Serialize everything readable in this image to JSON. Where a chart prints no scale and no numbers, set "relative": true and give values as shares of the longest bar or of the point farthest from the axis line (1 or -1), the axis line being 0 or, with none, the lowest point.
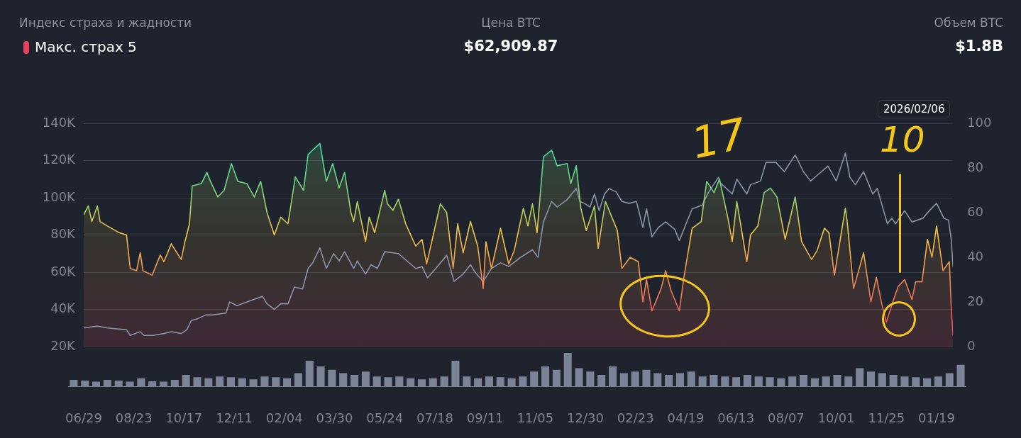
{
  "chart_data": [
    {
      "type": "line",
      "title": "Индекс страха и жадности",
      "subtitle": "Макс. страх 5",
      "annotations": [
        "Цена BTC",
        "$62,909.87",
        "Объем BTC",
        "$1.8B",
        "2026/02/06",
        "17",
        "10"
      ],
      "xlim": [
        "2023-06-29",
        "2026-02-06"
      ],
      "xticks": [
        {
          "value": "2023-06-29",
          "label": "06/29"
        },
        {
          "value": "2023-08-23",
          "label": "08/23"
        },
        {
          "value": "2023-10-17",
          "label": "10/17"
        },
        {
          "value": "2023-12-11",
          "label": "12/11"
        },
        {
          "value": "2024-02-04",
          "label": "02/04"
        },
        {
          "value": "2024-03-30",
          "label": "03/30"
        },
        {
          "value": "2024-05-24",
          "label": "05/24"
        },
        {
          "value": "2024-07-18",
          "label": "07/18"
        },
        {
          "value": "2024-09-11",
          "label": "09/11"
        },
        {
          "value": "2024-11-05",
          "label": "11/05"
        },
        {
          "value": "2024-12-30",
          "label": "12/30"
        },
        {
          "value": "2025-02-23",
          "label": "02/23"
        },
        {
          "value": "2025-04-19",
          "label": "04/19"
        },
        {
          "value": "2025-06-13",
          "label": "06/13"
        },
        {
          "value": "2025-08-07",
          "label": "08/07"
        },
        {
          "value": "2025-10-01",
          "label": "10/01"
        },
        {
          "value": "2025-11-25",
          "label": "11/25"
        },
        {
          "value": "2026-01-19",
          "label": "01/19"
        }
      ],
      "ylim": [
        20,
        140
      ],
      "yticks": [
        {
          "value": 20,
          "label": "20K"
        },
        {
          "value": 40,
          "label": "40K"
        },
        {
          "value": 60,
          "label": "60K"
        },
        {
          "value": 80,
          "label": "80K"
        },
        {
          "value": 100,
          "label": "100K"
        },
        {
          "value": 120,
          "label": "120K"
        },
        {
          "value": 140,
          "label": "140K"
        }
      ],
      "y2lim": [
        0,
        100
      ],
      "y2ticks": [
        0,
        20,
        40,
        60,
        80,
        100
      ],
      "grid": "y",
      "series": [
        {
          "type": "area",
          "axis": "y2",
          "color": "#f5c542",
          "x": [
            "2023-06-29",
            "2023-07-04",
            "2023-07-08",
            "2023-07-14",
            "2023-07-17",
            "2023-07-25",
            "2023-08-07",
            "2023-08-15",
            "2023-08-19",
            "2023-08-26",
            "2023-08-30",
            "2023-09-02",
            "2023-09-12",
            "2023-09-21",
            "2023-09-25",
            "2023-10-03",
            "2023-10-14",
            "2023-10-18",
            "2023-10-23",
            "2023-10-26",
            "2023-11-05",
            "2023-11-11",
            "2023-11-15",
            "2023-11-23",
            "2023-11-30",
            "2023-12-08",
            "2023-12-15",
            "2023-12-25",
            "2024-01-02",
            "2024-01-09",
            "2024-01-16",
            "2024-01-24",
            "2024-01-31",
            "2024-02-08",
            "2024-02-16",
            "2024-02-25",
            "2024-03-01",
            "2024-03-06",
            "2024-03-14",
            "2024-03-21",
            "2024-03-28",
            "2024-04-04",
            "2024-04-10",
            "2024-04-17",
            "2024-04-20",
            "2024-04-24",
            "2024-05-03",
            "2024-05-07",
            "2024-05-13",
            "2024-05-24",
            "2024-05-27",
            "2024-06-02",
            "2024-06-08",
            "2024-06-16",
            "2024-06-27",
            "2024-07-04",
            "2024-07-09",
            "2024-07-19",
            "2024-07-24",
            "2024-07-31",
            "2024-08-07",
            "2024-08-12",
            "2024-08-18",
            "2024-08-26",
            "2024-09-03",
            "2024-09-09",
            "2024-09-12",
            "2024-09-18",
            "2024-09-28",
            "2024-10-07",
            "2024-10-13",
            "2024-10-23",
            "2024-10-28",
            "2024-11-02",
            "2024-11-07",
            "2024-11-14",
            "2024-11-23",
            "2024-11-29",
            "2024-12-10",
            "2024-12-14",
            "2024-12-20",
            "2024-12-25",
            "2024-12-31",
            "2025-01-09",
            "2025-01-13",
            "2025-01-21",
            "2025-01-25",
            "2025-02-03",
            "2025-02-08",
            "2025-02-17",
            "2025-02-26",
            "2025-03-03",
            "2025-03-07",
            "2025-03-13",
            "2025-03-23",
            "2025-03-28",
            "2025-04-03",
            "2025-04-12",
            "2025-04-17",
            "2025-04-26",
            "2025-05-06",
            "2025-05-12",
            "2025-05-20",
            "2025-05-26",
            "2025-06-04",
            "2025-06-09",
            "2025-06-14",
            "2025-06-25",
            "2025-06-29",
            "2025-07-07",
            "2025-07-14",
            "2025-07-21",
            "2025-07-28",
            "2025-08-06",
            "2025-08-17",
            "2025-08-24",
            "2025-09-04",
            "2025-09-10",
            "2025-09-18",
            "2025-09-23",
            "2025-09-29",
            "2025-10-11",
            "2025-10-13",
            "2025-10-20",
            "2025-10-31",
            "2025-11-08",
            "2025-11-14",
            "2025-11-20",
            "2025-11-25",
            "2025-12-02",
            "2025-12-08",
            "2025-12-15",
            "2025-12-23",
            "2025-12-27",
            "2026-01-03",
            "2026-01-09",
            "2026-01-14",
            "2026-01-19",
            "2026-01-26",
            "2026-02-02",
            "2026-02-04",
            "2026-02-06"
          ],
          "values": [
            59,
            63,
            56,
            63,
            56,
            54,
            51,
            50,
            35,
            34,
            42,
            34,
            32,
            41,
            38,
            46,
            39,
            47,
            55,
            72,
            73,
            78,
            74,
            67,
            70,
            82,
            74,
            73,
            67,
            74,
            60,
            50,
            58,
            55,
            76,
            70,
            86,
            88,
            91,
            74,
            82,
            71,
            78,
            60,
            56,
            65,
            47,
            58,
            51,
            70,
            64,
            61,
            66,
            55,
            45,
            48,
            37,
            55,
            64,
            60,
            35,
            55,
            42,
            56,
            45,
            26,
            47,
            35,
            53,
            37,
            43,
            62,
            54,
            64,
            51,
            85,
            88,
            81,
            82,
            73,
            81,
            62,
            52,
            63,
            44,
            65,
            61,
            52,
            35,
            40,
            38,
            20,
            30,
            16,
            26,
            34,
            25,
            16,
            31,
            53,
            56,
            74,
            69,
            75,
            58,
            47,
            65,
            38,
            50,
            54,
            69,
            71,
            67,
            48,
            67,
            47,
            39,
            43,
            53,
            51,
            32,
            62,
            56,
            26,
            42,
            20,
            31,
            19,
            11,
            20,
            27,
            30,
            21,
            29,
            29,
            48,
            40,
            54,
            34,
            38,
            18,
            5
          ]
        },
        {
          "type": "line",
          "color": "#8b93a7",
          "x": [
            "2023-06-29",
            "2023-07-14",
            "2023-07-25",
            "2023-08-15",
            "2023-08-19",
            "2023-08-30",
            "2023-09-03",
            "2023-09-13",
            "2023-09-25",
            "2023-10-03",
            "2023-10-14",
            "2023-10-20",
            "2023-10-25",
            "2023-11-01",
            "2023-11-10",
            "2023-11-17",
            "2023-12-02",
            "2023-12-06",
            "2023-12-14",
            "2023-12-25",
            "2024-01-11",
            "2024-01-16",
            "2024-01-24",
            "2024-01-31",
            "2024-02-08",
            "2024-02-15",
            "2024-02-24",
            "2024-03-01",
            "2024-03-06",
            "2024-03-14",
            "2024-03-21",
            "2024-03-29",
            "2024-04-04",
            "2024-04-10",
            "2024-04-20",
            "2024-04-24",
            "2024-05-03",
            "2024-05-09",
            "2024-05-16",
            "2024-05-24",
            "2024-06-08",
            "2024-06-27",
            "2024-07-04",
            "2024-07-10",
            "2024-07-19",
            "2024-07-31",
            "2024-08-08",
            "2024-08-18",
            "2024-08-26",
            "2024-08-31",
            "2024-09-09",
            "2024-09-18",
            "2024-09-28",
            "2024-10-07",
            "2024-10-20",
            "2024-11-02",
            "2024-11-08",
            "2024-11-14",
            "2024-11-23",
            "2024-11-29",
            "2024-12-10",
            "2024-12-20",
            "2024-12-24",
            "2024-12-29",
            "2025-01-04",
            "2025-01-09",
            "2025-01-14",
            "2025-01-20",
            "2025-01-25",
            "2025-02-02",
            "2025-02-08",
            "2025-02-16",
            "2025-02-24",
            "2025-03-03",
            "2025-03-07",
            "2025-03-13",
            "2025-03-20",
            "2025-03-28",
            "2025-04-07",
            "2025-04-12",
            "2025-04-26",
            "2025-05-07",
            "2025-05-14",
            "2025-05-25",
            "2025-05-27",
            "2025-06-09",
            "2025-06-14",
            "2025-06-25",
            "2025-06-29",
            "2025-07-10",
            "2025-07-16",
            "2025-07-27",
            "2025-08-05",
            "2025-08-17",
            "2025-08-26",
            "2025-09-03",
            "2025-09-10",
            "2025-09-22",
            "2025-10-01",
            "2025-10-11",
            "2025-10-16",
            "2025-10-22",
            "2025-10-31",
            "2025-11-10",
            "2025-11-15",
            "2025-11-26",
            "2025-12-01",
            "2025-12-05",
            "2025-12-15",
            "2025-12-23",
            "2026-01-04",
            "2026-01-11",
            "2026-01-19",
            "2026-01-27",
            "2026-02-01",
            "2026-02-04",
            "2026-02-06"
          ],
          "values": [
            30,
            31,
            30,
            29,
            26,
            28,
            26,
            26,
            27,
            28,
            27,
            29,
            34,
            35,
            37,
            37,
            38,
            44,
            42,
            44,
            47,
            43,
            40,
            43,
            43,
            52,
            51,
            62,
            65,
            73,
            62,
            70,
            66,
            71,
            62,
            66,
            59,
            64,
            62,
            71,
            70,
            62,
            63,
            57,
            62,
            69,
            55,
            59,
            64,
            60,
            55,
            62,
            65,
            63,
            68,
            72,
            68,
            87,
            98,
            95,
            99,
            105,
            98,
            97,
            95,
            102,
            93,
            102,
            105,
            103,
            98,
            97,
            98,
            84,
            94,
            79,
            84,
            87,
            83,
            77,
            94,
            96,
            103,
            111,
            108,
            102,
            110,
            102,
            107,
            109,
            119,
            119,
            114,
            123,
            114,
            109,
            112,
            117,
            109,
            124,
            111,
            107,
            114,
            102,
            105,
            86,
            89,
            86,
            93,
            87,
            89,
            93,
            97,
            89,
            88,
            78,
            63
          ]
        }
      ]
    },
    {
      "type": "bar",
      "relative": true,
      "color": "#7b8396",
      "categories": [
        null,
        null,
        null,
        null,
        null,
        null,
        null,
        null,
        null,
        null,
        null,
        null,
        null,
        null,
        null,
        null,
        null,
        null,
        null,
        null,
        null,
        null,
        null,
        null,
        null,
        null,
        null,
        null,
        null,
        null,
        null,
        null,
        null,
        null,
        null,
        null,
        null,
        null,
        null,
        null,
        null,
        null,
        null,
        null,
        null,
        null,
        null,
        null,
        null,
        null,
        null,
        null,
        null,
        null,
        null,
        null,
        null,
        null,
        null,
        null,
        null,
        null,
        null,
        null,
        null,
        null,
        null,
        null,
        null,
        null,
        null,
        null,
        null,
        null,
        null,
        null,
        null,
        null,
        null,
        null
      ],
      "values": [
        0.2,
        0.18,
        0.15,
        0.2,
        0.18,
        0.15,
        0.25,
        0.16,
        0.15,
        0.2,
        0.35,
        0.28,
        0.25,
        0.3,
        0.28,
        0.25,
        0.22,
        0.3,
        0.28,
        0.25,
        0.4,
        0.77,
        0.6,
        0.5,
        0.4,
        0.35,
        0.45,
        0.3,
        0.28,
        0.3,
        0.25,
        0.22,
        0.25,
        0.3,
        0.77,
        0.3,
        0.25,
        0.3,
        0.28,
        0.25,
        0.3,
        0.45,
        0.6,
        0.5,
        1,
        0.55,
        0.45,
        0.35,
        0.6,
        0.4,
        0.45,
        0.5,
        0.4,
        0.35,
        0.4,
        0.45,
        0.3,
        0.35,
        0.3,
        0.28,
        0.35,
        0.3,
        0.28,
        0.25,
        0.3,
        0.35,
        0.25,
        0.3,
        0.35,
        0.3,
        0.55,
        0.45,
        0.4,
        0.35,
        0.3,
        0.28,
        0.25,
        0.3,
        0.4,
        0.65
      ]
    }
  ]
}
